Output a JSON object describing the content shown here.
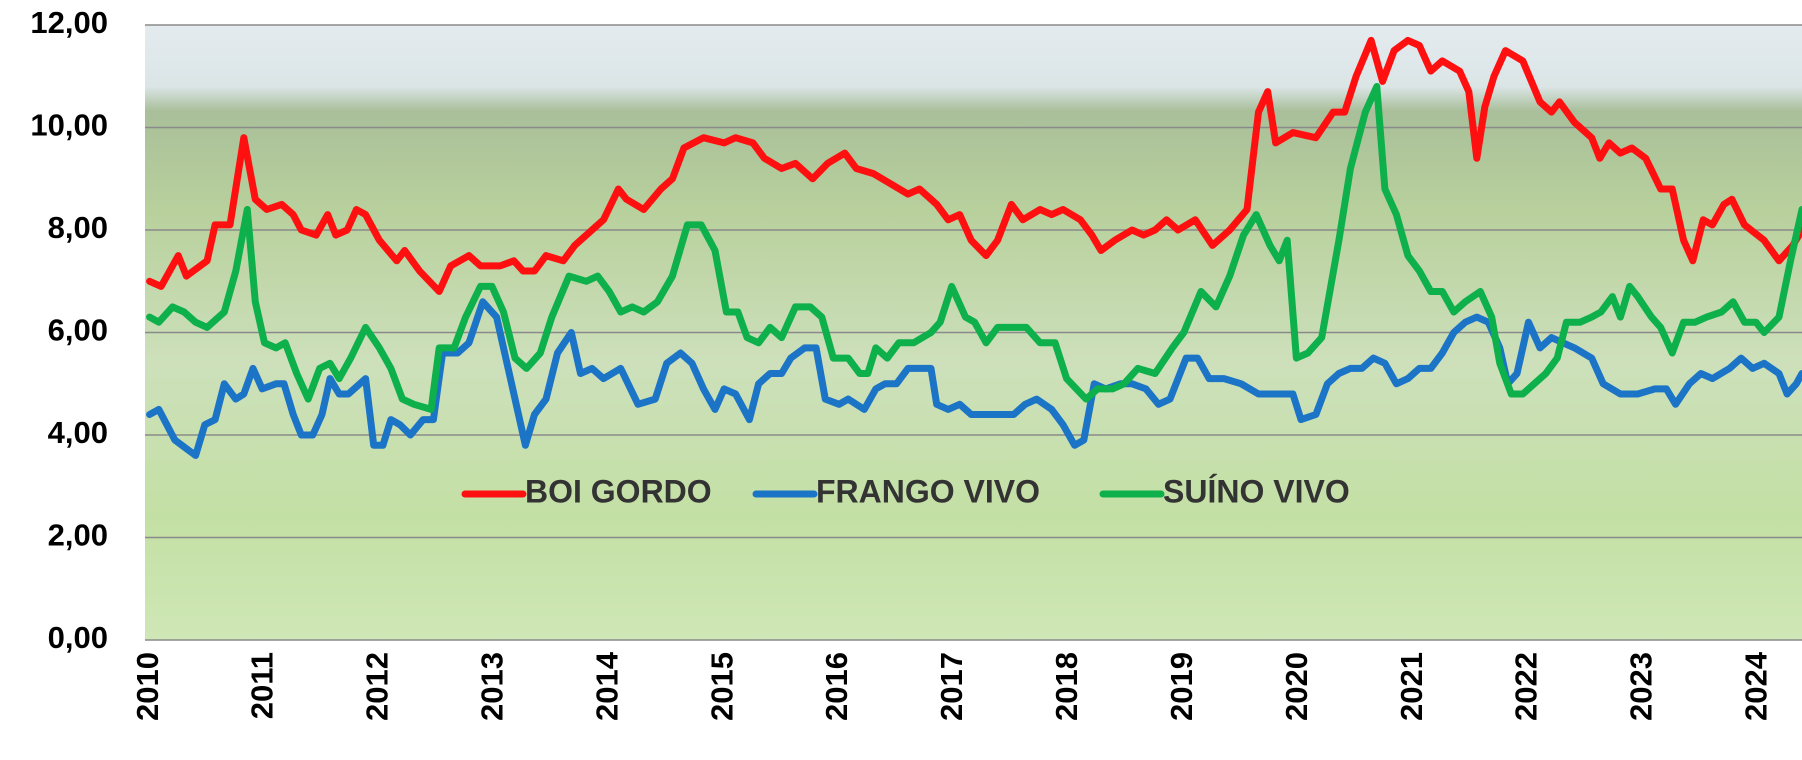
{
  "chart_data": {
    "type": "line",
    "xlim": [
      2009.96,
      2024.38
    ],
    "xticks": [
      2010,
      2011,
      2012,
      2013,
      2014,
      2015,
      2016,
      2017,
      2018,
      2019,
      2020,
      2021,
      2022,
      2023,
      2024
    ],
    "ylim": [
      0,
      12
    ],
    "yticks": [
      {
        "value": 0,
        "label": "0,00"
      },
      {
        "value": 2,
        "label": "2,00"
      },
      {
        "value": 4,
        "label": "4,00"
      },
      {
        "value": 6,
        "label": "6,00"
      },
      {
        "value": 8,
        "label": "8,00"
      },
      {
        "value": 10,
        "label": "10,00"
      },
      {
        "value": 12,
        "label": "12,00"
      }
    ],
    "grid": true,
    "legend": "center",
    "series": [
      {
        "name": "BOI GORDO",
        "color": "#ff1010",
        "x": [
          2010.0,
          2010.1,
          2010.25,
          2010.32,
          2010.5,
          2010.57,
          2010.7,
          2010.82,
          2010.92,
          2011.02,
          2011.15,
          2011.25,
          2011.32,
          2011.45,
          2011.55,
          2011.62,
          2011.72,
          2011.8,
          2011.88,
          2012.0,
          2012.15,
          2012.22,
          2012.35,
          2012.52,
          2012.62,
          2012.78,
          2012.88,
          2013.05,
          2013.17,
          2013.25,
          2013.35,
          2013.45,
          2013.6,
          2013.7,
          2013.85,
          2013.95,
          2014.08,
          2014.15,
          2014.3,
          2014.45,
          2014.55,
          2014.65,
          2014.82,
          2015.0,
          2015.1,
          2015.25,
          2015.35,
          2015.5,
          2015.62,
          2015.77,
          2015.9,
          2016.05,
          2016.15,
          2016.3,
          2016.45,
          2016.6,
          2016.7,
          2016.85,
          2016.95,
          2017.05,
          2017.15,
          2017.28,
          2017.38,
          2017.5,
          2017.6,
          2017.75,
          2017.85,
          2017.95,
          2018.1,
          2018.2,
          2018.28,
          2018.4,
          2018.55,
          2018.65,
          2018.75,
          2018.85,
          2018.95,
          2019.1,
          2019.25,
          2019.4,
          2019.55,
          2019.65,
          2019.73,
          2019.8,
          2019.95,
          2020.15,
          2020.3,
          2020.4,
          2020.5,
          2020.63,
          2020.73,
          2020.83,
          2020.95,
          2021.05,
          2021.15,
          2021.25,
          2021.4,
          2021.48,
          2021.55,
          2021.62,
          2021.7,
          2021.8,
          2021.95,
          2022.1,
          2022.2,
          2022.27,
          2022.4,
          2022.55,
          2022.62,
          2022.7,
          2022.8,
          2022.9,
          2023.02,
          2023.15,
          2023.25,
          2023.35,
          2023.43,
          2023.52,
          2023.6,
          2023.7,
          2023.77,
          2023.88,
          2024.05,
          2024.18,
          2024.3,
          2024.38
        ],
        "values": [
          7.0,
          6.9,
          7.5,
          7.1,
          7.4,
          8.1,
          8.1,
          9.8,
          8.6,
          8.4,
          8.5,
          8.3,
          8.0,
          7.9,
          8.3,
          7.9,
          8.0,
          8.4,
          8.3,
          7.8,
          7.4,
          7.6,
          7.2,
          6.8,
          7.3,
          7.5,
          7.3,
          7.3,
          7.4,
          7.2,
          7.2,
          7.5,
          7.4,
          7.7,
          8.0,
          8.2,
          8.8,
          8.6,
          8.4,
          8.8,
          9.0,
          9.6,
          9.8,
          9.7,
          9.8,
          9.7,
          9.4,
          9.2,
          9.3,
          9.0,
          9.3,
          9.5,
          9.2,
          9.1,
          8.9,
          8.7,
          8.8,
          8.5,
          8.2,
          8.3,
          7.8,
          7.5,
          7.8,
          8.5,
          8.2,
          8.4,
          8.3,
          8.4,
          8.2,
          7.9,
          7.6,
          7.8,
          8.0,
          7.9,
          8.0,
          8.2,
          8.0,
          8.2,
          7.7,
          8.0,
          8.4,
          10.3,
          10.7,
          9.7,
          9.9,
          9.8,
          10.3,
          10.3,
          11.0,
          11.7,
          10.9,
          11.5,
          11.7,
          11.6,
          11.1,
          11.3,
          11.1,
          10.7,
          9.4,
          10.4,
          11.0,
          11.5,
          11.3,
          10.5,
          10.3,
          10.5,
          10.1,
          9.8,
          9.4,
          9.7,
          9.5,
          9.6,
          9.4,
          8.8,
          8.8,
          7.8,
          7.4,
          8.2,
          8.1,
          8.5,
          8.6,
          8.1,
          7.8,
          7.4,
          7.7,
          8.0
        ]
      },
      {
        "name": "FRANGO VIVO",
        "color": "#1b74c6",
        "x": [
          2010.0,
          2010.08,
          2010.22,
          2010.4,
          2010.48,
          2010.57,
          2010.65,
          2010.75,
          2010.82,
          2010.9,
          2010.98,
          2011.1,
          2011.17,
          2011.25,
          2011.32,
          2011.42,
          2011.5,
          2011.57,
          2011.65,
          2011.73,
          2011.88,
          2011.95,
          2012.03,
          2012.1,
          2012.18,
          2012.27,
          2012.38,
          2012.47,
          2012.55,
          2012.68,
          2012.78,
          2012.9,
          2013.02,
          2013.15,
          2013.27,
          2013.35,
          2013.45,
          2013.55,
          2013.67,
          2013.75,
          2013.85,
          2013.95,
          2014.1,
          2014.25,
          2014.4,
          2014.5,
          2014.62,
          2014.72,
          2014.82,
          2014.92,
          2015.0,
          2015.1,
          2015.22,
          2015.3,
          2015.4,
          2015.5,
          2015.58,
          2015.7,
          2015.8,
          2015.88,
          2016.0,
          2016.08,
          2016.22,
          2016.32,
          2016.4,
          2016.5,
          2016.6,
          2016.7,
          2016.8,
          2016.85,
          2016.95,
          2017.05,
          2017.15,
          2017.25,
          2017.4,
          2017.52,
          2017.62,
          2017.72,
          2017.85,
          2017.95,
          2018.05,
          2018.13,
          2018.22,
          2018.32,
          2018.45,
          2018.55,
          2018.67,
          2018.78,
          2018.88,
          2019.02,
          2019.12,
          2019.22,
          2019.35,
          2019.5,
          2019.65,
          2019.8,
          2019.95,
          2020.02,
          2020.15,
          2020.25,
          2020.35,
          2020.45,
          2020.55,
          2020.65,
          2020.75,
          2020.85,
          2020.95,
          2021.05,
          2021.15,
          2021.25,
          2021.35,
          2021.45,
          2021.55,
          2021.65,
          2021.75,
          2021.82,
          2021.9,
          2022.0,
          2022.1,
          2022.2,
          2022.3,
          2022.4,
          2022.55,
          2022.65,
          2022.8,
          2022.95,
          2023.1,
          2023.2,
          2023.28,
          2023.4,
          2023.5,
          2023.6,
          2023.75,
          2023.85,
          2023.95,
          2024.05,
          2024.18,
          2024.25,
          2024.33,
          2024.38
        ],
        "values": [
          4.4,
          4.5,
          3.9,
          3.6,
          4.2,
          4.3,
          5.0,
          4.7,
          4.8,
          5.3,
          4.9,
          5.0,
          5.0,
          4.4,
          4.0,
          4.0,
          4.4,
          5.1,
          4.8,
          4.8,
          5.1,
          3.8,
          3.8,
          4.3,
          4.2,
          4.0,
          4.3,
          4.3,
          5.6,
          5.6,
          5.8,
          6.6,
          6.3,
          5.0,
          3.8,
          4.4,
          4.7,
          5.6,
          6.0,
          5.2,
          5.3,
          5.1,
          5.3,
          4.6,
          4.7,
          5.4,
          5.6,
          5.4,
          4.9,
          4.5,
          4.9,
          4.8,
          4.3,
          5.0,
          5.2,
          5.2,
          5.5,
          5.7,
          5.7,
          4.7,
          4.6,
          4.7,
          4.5,
          4.9,
          5.0,
          5.0,
          5.3,
          5.3,
          5.3,
          4.6,
          4.5,
          4.6,
          4.4,
          4.4,
          4.4,
          4.4,
          4.6,
          4.7,
          4.5,
          4.2,
          3.8,
          3.9,
          5.0,
          4.9,
          5.0,
          5.0,
          4.9,
          4.6,
          4.7,
          5.5,
          5.5,
          5.1,
          5.1,
          5.0,
          4.8,
          4.8,
          4.8,
          4.3,
          4.4,
          5.0,
          5.2,
          5.3,
          5.3,
          5.5,
          5.4,
          5.0,
          5.1,
          5.3,
          5.3,
          5.6,
          6.0,
          6.2,
          6.3,
          6.2,
          5.7,
          5.0,
          5.2,
          6.2,
          5.7,
          5.9,
          5.8,
          5.7,
          5.5,
          5.0,
          4.8,
          4.8,
          4.9,
          4.9,
          4.6,
          5.0,
          5.2,
          5.1,
          5.3,
          5.5,
          5.3,
          5.4,
          5.2,
          4.8,
          5.0,
          5.2
        ]
      },
      {
        "name": "SUÍNO VIVO",
        "color": "#0db04b",
        "x": [
          2010.0,
          2010.08,
          2010.2,
          2010.3,
          2010.4,
          2010.5,
          2010.65,
          2010.75,
          2010.85,
          2010.92,
          2011.0,
          2011.1,
          2011.18,
          2011.28,
          2011.38,
          2011.48,
          2011.57,
          2011.65,
          2011.75,
          2011.88,
          2012.0,
          2012.1,
          2012.2,
          2012.3,
          2012.45,
          2012.52,
          2012.65,
          2012.75,
          2012.88,
          2012.98,
          2013.08,
          2013.18,
          2013.28,
          2013.4,
          2013.5,
          2013.65,
          2013.8,
          2013.9,
          2014.0,
          2014.1,
          2014.2,
          2014.3,
          2014.42,
          2014.55,
          2014.68,
          2014.8,
          2014.92,
          2015.02,
          2015.12,
          2015.2,
          2015.3,
          2015.4,
          2015.5,
          2015.62,
          2015.75,
          2015.85,
          2015.95,
          2016.08,
          2016.18,
          2016.25,
          2016.32,
          2016.42,
          2016.52,
          2016.65,
          2016.8,
          2016.88,
          2016.98,
          2017.1,
          2017.18,
          2017.28,
          2017.38,
          2017.5,
          2017.63,
          2017.75,
          2017.88,
          2017.98,
          2018.15,
          2018.25,
          2018.38,
          2018.48,
          2018.6,
          2018.75,
          2018.9,
          2019.0,
          2019.15,
          2019.28,
          2019.4,
          2019.52,
          2019.63,
          2019.75,
          2019.83,
          2019.9,
          2019.98,
          2020.08,
          2020.2,
          2020.35,
          2020.45,
          2020.58,
          2020.68,
          2020.75,
          2020.85,
          2020.95,
          2021.05,
          2021.15,
          2021.25,
          2021.35,
          2021.45,
          2021.58,
          2021.68,
          2021.75,
          2021.85,
          2021.95,
          2022.05,
          2022.15,
          2022.25,
          2022.33,
          2022.45,
          2022.55,
          2022.63,
          2022.73,
          2022.8,
          2022.88,
          2022.95,
          2023.07,
          2023.15,
          2023.25,
          2023.35,
          2023.45,
          2023.55,
          2023.68,
          2023.78,
          2023.88,
          2023.98,
          2024.05,
          2024.18,
          2024.28,
          2024.38
        ],
        "values": [
          6.3,
          6.2,
          6.5,
          6.4,
          6.2,
          6.1,
          6.4,
          7.2,
          8.4,
          6.6,
          5.8,
          5.7,
          5.8,
          5.2,
          4.7,
          5.3,
          5.4,
          5.1,
          5.5,
          6.1,
          5.7,
          5.3,
          4.7,
          4.6,
          4.5,
          5.7,
          5.7,
          6.3,
          6.9,
          6.9,
          6.4,
          5.5,
          5.3,
          5.6,
          6.3,
          7.1,
          7.0,
          7.1,
          6.8,
          6.4,
          6.5,
          6.4,
          6.6,
          7.1,
          8.1,
          8.1,
          7.6,
          6.4,
          6.4,
          5.9,
          5.8,
          6.1,
          5.9,
          6.5,
          6.5,
          6.3,
          5.5,
          5.5,
          5.2,
          5.2,
          5.7,
          5.5,
          5.8,
          5.8,
          6.0,
          6.2,
          6.9,
          6.3,
          6.2,
          5.8,
          6.1,
          6.1,
          6.1,
          5.8,
          5.8,
          5.1,
          4.7,
          4.9,
          4.9,
          5.0,
          5.3,
          5.2,
          5.7,
          6.0,
          6.8,
          6.5,
          7.1,
          7.9,
          8.3,
          7.7,
          7.4,
          7.8,
          5.5,
          5.6,
          5.9,
          7.8,
          9.2,
          10.3,
          10.8,
          8.8,
          8.3,
          7.5,
          7.2,
          6.8,
          6.8,
          6.4,
          6.6,
          6.8,
          6.3,
          5.4,
          4.8,
          4.8,
          5.0,
          5.2,
          5.5,
          6.2,
          6.2,
          6.3,
          6.4,
          6.7,
          6.3,
          6.9,
          6.7,
          6.3,
          6.1,
          5.6,
          6.2,
          6.2,
          6.3,
          6.4,
          6.6,
          6.2,
          6.2,
          6.0,
          6.3,
          7.4,
          8.4
        ]
      }
    ]
  }
}
